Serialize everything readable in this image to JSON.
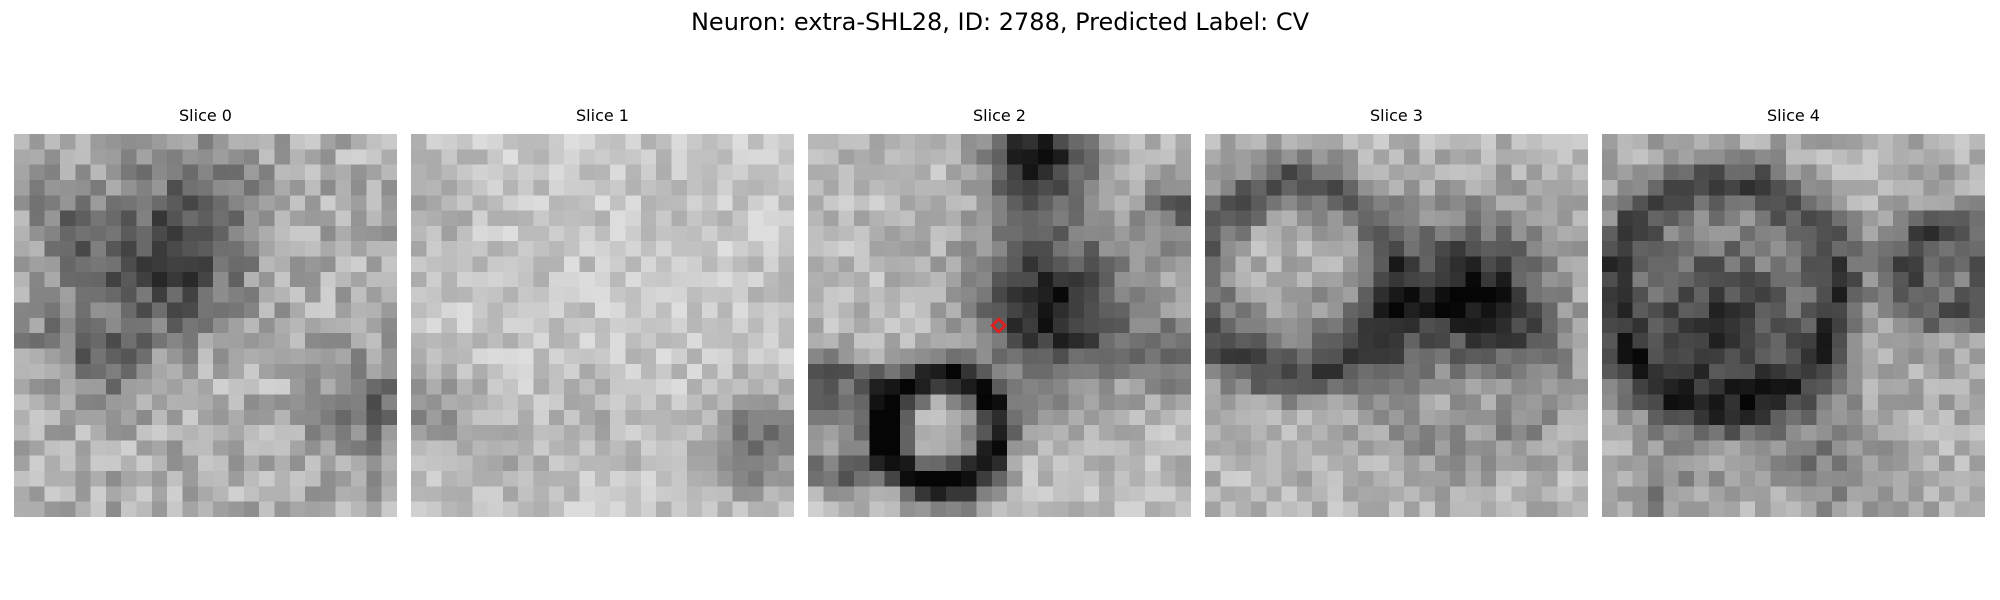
{
  "figure": {
    "title": "Neuron: extra-SHL28, ID: 2788, Predicted Label: CV"
  },
  "panels": [
    {
      "title": "Slice 0"
    },
    {
      "title": "Slice 1"
    },
    {
      "title": "Slice 2"
    },
    {
      "title": "Slice 3"
    },
    {
      "title": "Slice 4"
    }
  ],
  "colors": {
    "marker": "#e02020",
    "background": "#ffffff"
  },
  "marker": {
    "panel": 2,
    "shape": "diamond-outline"
  },
  "image_grid": {
    "rows": 25,
    "cols": 25,
    "colormap": "gray"
  }
}
